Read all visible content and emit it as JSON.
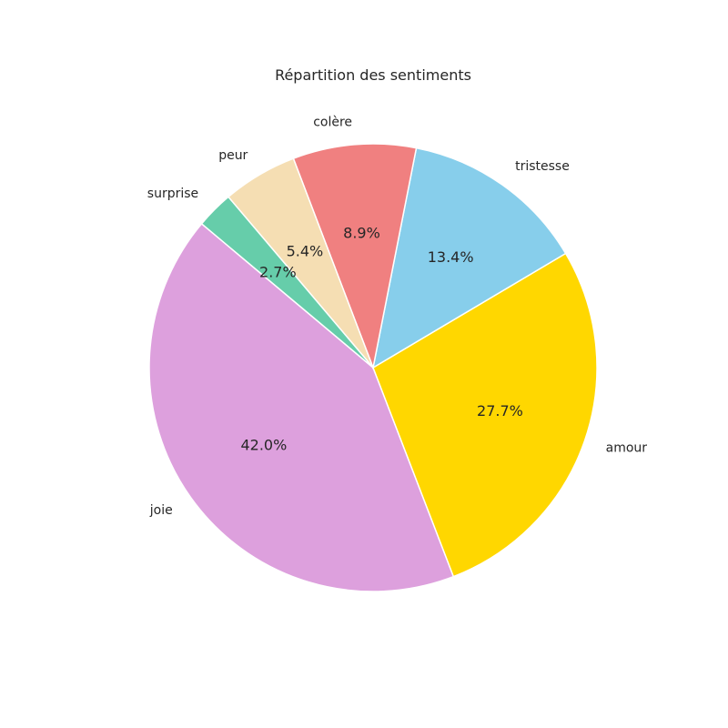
{
  "chart_data": {
    "type": "pie",
    "title": "Répartition des sentiments",
    "slices": [
      {
        "label": "joie",
        "value": 42.0,
        "pct_label": "42.0%",
        "color": "#DDA0DD"
      },
      {
        "label": "amour",
        "value": 27.7,
        "pct_label": "27.7%",
        "color": "#FFD700"
      },
      {
        "label": "tristesse",
        "value": 13.4,
        "pct_label": "13.4%",
        "color": "#87CEEB"
      },
      {
        "label": "colère",
        "value": 8.9,
        "pct_label": "8.9%",
        "color": "#F08080"
      },
      {
        "label": "peur",
        "value": 5.4,
        "pct_label": "5.4%",
        "color": "#F5DEB3"
      },
      {
        "label": "surprise",
        "value": 2.7,
        "pct_label": "2.7%",
        "color": "#66CDAA"
      }
    ]
  }
}
